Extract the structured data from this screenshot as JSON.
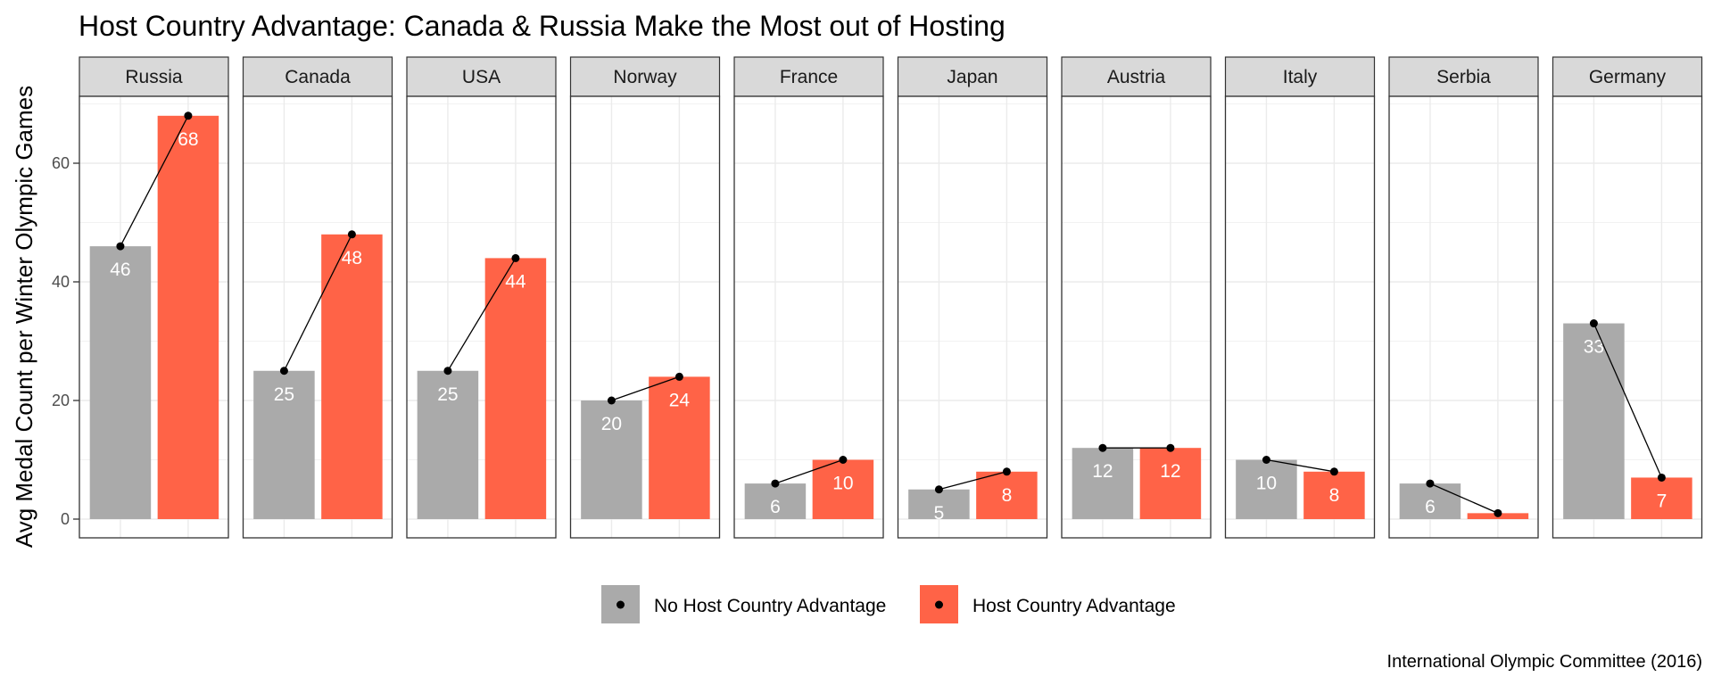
{
  "chart_data": {
    "type": "bar",
    "title": "Host Country Advantage: Canada & Russia Make the Most out of Hosting",
    "ylabel": "Avg Medal Count per Winter Olympic Games",
    "xlabel": "",
    "caption": "International Olympic Committee (2016)",
    "ylim": [
      0,
      72
    ],
    "yticks": [
      0,
      20,
      40,
      60
    ],
    "grid": true,
    "legend_position": "bottom",
    "facets": [
      "Russia",
      "Canada",
      "USA",
      "Norway",
      "France",
      "Japan",
      "Austria",
      "Italy",
      "Serbia",
      "Germany"
    ],
    "series": [
      {
        "name": "No Host Country Advantage",
        "color": "#aaaaaa",
        "values": [
          46,
          25,
          25,
          20,
          6,
          5,
          12,
          10,
          6,
          33
        ],
        "labels": [
          "46",
          "25",
          "25",
          "20",
          "6",
          "5",
          "12",
          "10",
          "6",
          "33"
        ]
      },
      {
        "name": "Host Country Advantage",
        "color": "#ff6347",
        "values": [
          68,
          48,
          44,
          24,
          10,
          8,
          12,
          8,
          1,
          7
        ],
        "labels": [
          "68",
          "48",
          "44",
          "24",
          "10",
          "8",
          "12",
          "8",
          "",
          "7"
        ]
      }
    ]
  }
}
